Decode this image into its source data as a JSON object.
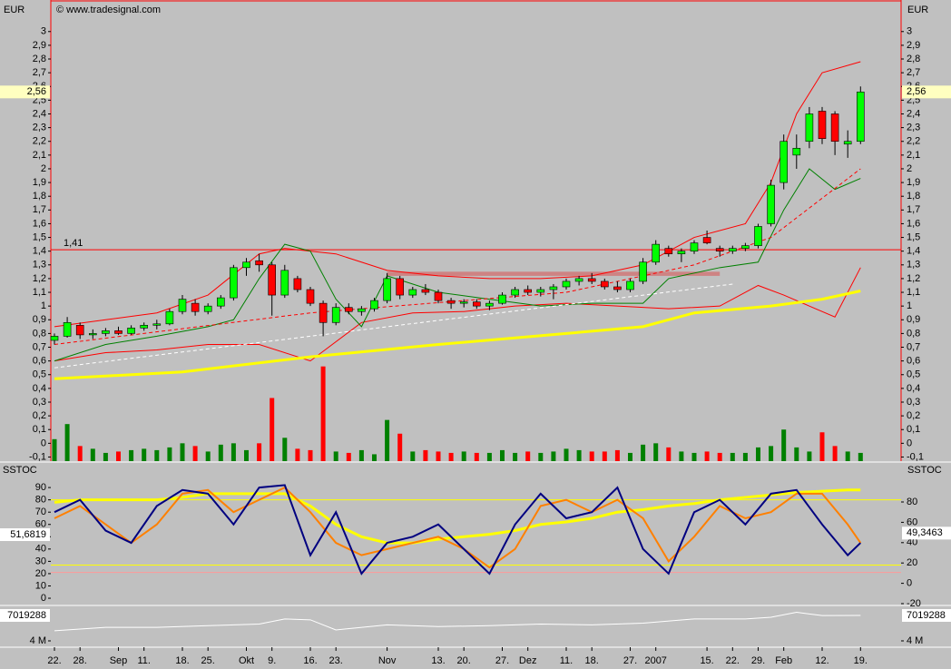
{
  "chart_data": [
    {
      "type": "candlestick",
      "axis_label": "EUR",
      "copyright": "© www.tradesignal.com",
      "categories": [
        "22.",
        null,
        "28.",
        null,
        null,
        "Sep",
        null,
        "11.",
        null,
        null,
        "18.",
        null,
        "25.",
        null,
        null,
        "Okt",
        null,
        "9.",
        null,
        null,
        "16.",
        null,
        "23.",
        null,
        null,
        null,
        "Nov",
        null,
        null,
        null,
        "13.",
        null,
        "20.",
        null,
        null,
        "27.",
        null,
        "Dez",
        null,
        null,
        "11.",
        null,
        "18.",
        null,
        null,
        "27.",
        null,
        "2007",
        null,
        null,
        null,
        "15.",
        null,
        "22.",
        null,
        "29.",
        null,
        "Feb",
        null,
        null,
        "12.",
        null,
        null,
        "19."
      ],
      "candles": [
        [
          0.75,
          0.8,
          0.72,
          0.78
        ],
        [
          0.78,
          0.92,
          0.77,
          0.88
        ],
        [
          0.86,
          0.88,
          0.76,
          0.79
        ],
        [
          0.79,
          0.83,
          0.76,
          0.8
        ],
        [
          0.8,
          0.84,
          0.78,
          0.82
        ],
        [
          0.82,
          0.85,
          0.79,
          0.8
        ],
        [
          0.8,
          0.86,
          0.79,
          0.84
        ],
        [
          0.84,
          0.88,
          0.82,
          0.86
        ],
        [
          0.86,
          0.9,
          0.83,
          0.87
        ],
        [
          0.87,
          0.98,
          0.86,
          0.96
        ],
        [
          0.96,
          1.08,
          0.94,
          1.05
        ],
        [
          1.02,
          1.05,
          0.93,
          0.96
        ],
        [
          0.96,
          1.02,
          0.94,
          1.0
        ],
        [
          1.0,
          1.08,
          0.98,
          1.06
        ],
        [
          1.06,
          1.3,
          1.04,
          1.28
        ],
        [
          1.28,
          1.35,
          1.22,
          1.32
        ],
        [
          1.33,
          1.38,
          1.25,
          1.3
        ],
        [
          1.3,
          1.32,
          0.93,
          1.08
        ],
        [
          1.08,
          1.3,
          1.06,
          1.26
        ],
        [
          1.2,
          1.22,
          1.1,
          1.12
        ],
        [
          1.12,
          1.14,
          1.0,
          1.02
        ],
        [
          1.02,
          1.04,
          0.78,
          0.88
        ],
        [
          0.88,
          1.02,
          0.86,
          0.99
        ],
        [
          0.99,
          1.02,
          0.94,
          0.96
        ],
        [
          0.96,
          1.0,
          0.93,
          0.98
        ],
        [
          0.98,
          1.06,
          0.96,
          1.04
        ],
        [
          1.04,
          1.24,
          1.02,
          1.2
        ],
        [
          1.2,
          1.22,
          1.05,
          1.08
        ],
        [
          1.08,
          1.14,
          1.06,
          1.12
        ],
        [
          1.12,
          1.16,
          1.08,
          1.1
        ],
        [
          1.1,
          1.12,
          1.02,
          1.04
        ],
        [
          1.04,
          1.06,
          0.98,
          1.02
        ],
        [
          1.02,
          1.05,
          0.99,
          1.03
        ],
        [
          1.03,
          1.05,
          0.98,
          1.0
        ],
        [
          1.0,
          1.04,
          0.97,
          1.02
        ],
        [
          1.02,
          1.1,
          1.01,
          1.08
        ],
        [
          1.08,
          1.14,
          1.06,
          1.12
        ],
        [
          1.12,
          1.15,
          1.08,
          1.1
        ],
        [
          1.1,
          1.14,
          1.07,
          1.12
        ],
        [
          1.12,
          1.16,
          1.05,
          1.14
        ],
        [
          1.14,
          1.2,
          1.12,
          1.18
        ],
        [
          1.18,
          1.22,
          1.15,
          1.2
        ],
        [
          1.2,
          1.24,
          1.16,
          1.18
        ],
        [
          1.18,
          1.2,
          1.12,
          1.14
        ],
        [
          1.14,
          1.18,
          1.1,
          1.12
        ],
        [
          1.12,
          1.2,
          1.1,
          1.18
        ],
        [
          1.18,
          1.35,
          1.16,
          1.32
        ],
        [
          1.32,
          1.48,
          1.3,
          1.45
        ],
        [
          1.42,
          1.44,
          1.36,
          1.38
        ],
        [
          1.38,
          1.42,
          1.32,
          1.4
        ],
        [
          1.4,
          1.48,
          1.38,
          1.46
        ],
        [
          1.5,
          1.55,
          1.45,
          1.46
        ],
        [
          1.42,
          1.44,
          1.36,
          1.4
        ],
        [
          1.4,
          1.44,
          1.38,
          1.42
        ],
        [
          1.42,
          1.46,
          1.4,
          1.44
        ],
        [
          1.44,
          1.6,
          1.42,
          1.58
        ],
        [
          1.6,
          1.92,
          1.58,
          1.88
        ],
        [
          1.9,
          2.25,
          1.85,
          2.2
        ],
        [
          2.1,
          2.25,
          2.0,
          2.15
        ],
        [
          2.2,
          2.45,
          2.15,
          2.4
        ],
        [
          2.42,
          2.45,
          2.18,
          2.22
        ],
        [
          2.4,
          2.42,
          2.1,
          2.2
        ],
        [
          2.18,
          2.28,
          2.08,
          2.2
        ],
        [
          2.2,
          2.6,
          2.18,
          2.56
        ]
      ],
      "volume": [
        0.03,
        0.14,
        -0.02,
        -0.04,
        -0.07,
        -0.06,
        -0.05,
        -0.04,
        -0.05,
        -0.03,
        0.0,
        -0.02,
        -0.06,
        -0.01,
        0.0,
        -0.05,
        0.0,
        0.33,
        0.04,
        -0.04,
        -0.05,
        0.56,
        -0.06,
        -0.07,
        -0.05,
        -0.08,
        0.17,
        0.07,
        -0.06,
        -0.05,
        -0.06,
        -0.07,
        -0.06,
        -0.07,
        -0.07,
        -0.05,
        -0.07,
        -0.06,
        -0.07,
        -0.06,
        -0.04,
        -0.05,
        -0.06,
        -0.06,
        -0.05,
        -0.07,
        -0.01,
        0.0,
        -0.03,
        -0.06,
        -0.07,
        -0.06,
        -0.07,
        -0.07,
        -0.07,
        -0.03,
        -0.02,
        0.1,
        -0.03,
        -0.06,
        0.08,
        -0.02,
        -0.06,
        -0.07
      ],
      "up_color": "#00ff00",
      "down_color": "#ff0000",
      "volume_up_color": "#008000",
      "ylim": [
        -0.13,
        3.23
      ],
      "yticks": [
        3,
        {
          "value": 2.9,
          "label": "2,9"
        },
        {
          "value": 2.8,
          "label": "2,8"
        },
        {
          "value": 2.7,
          "label": "2,7"
        },
        {
          "value": 2.6,
          "label": "2,6"
        },
        {
          "value": 2.5,
          "label": "2,5"
        },
        {
          "value": 2.4,
          "label": "2,4"
        },
        {
          "value": 2.3,
          "label": "2,3"
        },
        {
          "value": 2.2,
          "label": "2,2"
        },
        {
          "value": 2.1,
          "label": "2,1"
        },
        2,
        {
          "value": 1.9,
          "label": "1,9"
        },
        {
          "value": 1.8,
          "label": "1,8"
        },
        {
          "value": 1.7,
          "label": "1,7"
        },
        {
          "value": 1.6,
          "label": "1,6"
        },
        {
          "value": 1.5,
          "label": "1,5"
        },
        {
          "value": 1.4,
          "label": "1,4"
        },
        {
          "value": 1.3,
          "label": "1,3"
        },
        {
          "value": 1.2,
          "label": "1,2"
        },
        {
          "value": 1.1,
          "label": "1,1"
        },
        1,
        {
          "value": 0.9,
          "label": "0,9"
        },
        {
          "value": 0.8,
          "label": "0,8"
        },
        {
          "value": 0.7,
          "label": "0,7"
        },
        {
          "value": 0.6,
          "label": "0,6"
        },
        {
          "value": 0.5,
          "label": "0,5"
        },
        {
          "value": 0.4,
          "label": "0,4"
        },
        {
          "value": 0.3,
          "label": "0,3"
        },
        {
          "value": 0.2,
          "label": "0,2"
        },
        {
          "value": 0.1,
          "label": "0,1"
        },
        0,
        {
          "value": -0.1,
          "label": "-0,1"
        }
      ],
      "last": {
        "value": 2.56,
        "label": "2,56"
      },
      "level": {
        "value": 1.41,
        "label": "1,41",
        "color": "#ff0000"
      },
      "zone": [
        1.22,
        1.25
      ],
      "series": [
        {
          "color": "#ff0000",
          "width": 1,
          "x": [
            0,
            4,
            8,
            12,
            16,
            18,
            22,
            26,
            30,
            34,
            38,
            42,
            46,
            50,
            54,
            56,
            58,
            60,
            63
          ],
          "values": [
            0.85,
            0.9,
            0.95,
            1.08,
            1.38,
            1.42,
            1.38,
            1.26,
            1.22,
            1.2,
            1.2,
            1.22,
            1.3,
            1.5,
            1.6,
            1.9,
            2.4,
            2.7,
            2.78
          ]
        },
        {
          "color": "#ff0000",
          "width": 1,
          "x": [
            0,
            4,
            8,
            12,
            16,
            20,
            24,
            28,
            32,
            36,
            40,
            44,
            48,
            52,
            55,
            57,
            59,
            61,
            63
          ],
          "values": [
            0.6,
            0.66,
            0.68,
            0.72,
            0.72,
            0.6,
            0.88,
            0.95,
            0.96,
            1.0,
            1.02,
            1.0,
            0.98,
            1.0,
            1.15,
            1.08,
            1.0,
            0.92,
            1.28
          ]
        },
        {
          "color": "#008000",
          "width": 1,
          "x": [
            0,
            4,
            8,
            12,
            14,
            16,
            18,
            20,
            22,
            24,
            26,
            30,
            34,
            38,
            42,
            46,
            48,
            52,
            55,
            57,
            59,
            61,
            63
          ],
          "values": [
            0.6,
            0.72,
            0.78,
            0.85,
            0.9,
            1.2,
            1.45,
            1.4,
            1.05,
            0.85,
            1.22,
            1.1,
            1.05,
            1.0,
            1.02,
            1.02,
            1.2,
            1.28,
            1.32,
            1.7,
            2.0,
            1.85,
            1.93
          ]
        },
        {
          "color": "#ffff00",
          "width": 3,
          "x": [
            0,
            10,
            20,
            30,
            40,
            46,
            50,
            56,
            60,
            63
          ],
          "values": [
            0.47,
            0.52,
            0.63,
            0.72,
            0.8,
            0.85,
            0.95,
            1.0,
            1.05,
            1.11
          ]
        },
        {
          "color": "#ffffff",
          "width": 1,
          "dashed": true,
          "x": [
            0,
            53
          ],
          "values": [
            0.55,
            1.16
          ]
        },
        {
          "color": "#ff0000",
          "width": 1,
          "dashed": true,
          "x": [
            0,
            20,
            40,
            50,
            56,
            63
          ],
          "values": [
            0.72,
            0.95,
            1.1,
            1.3,
            1.5,
            2.0
          ]
        }
      ]
    },
    {
      "type": "line",
      "axis_label": "SSTOC",
      "ylim": [
        -4.4,
        110
      ],
      "yticks": [
        90,
        80,
        70,
        60,
        50,
        40,
        30,
        20,
        10,
        0
      ],
      "y2lim": [
        -20,
        118.4
      ],
      "y2ticks": [
        80,
        60,
        40,
        20,
        0,
        -20
      ],
      "levels": [
        {
          "value": 80,
          "color": "#ffff00"
        },
        {
          "value": 27,
          "color": "#ffff00"
        },
        {
          "value": 21,
          "color": "#ff9999"
        }
      ],
      "last": {
        "value": 51.6819,
        "label": "51,6819"
      },
      "last2": {
        "value": 49.3463,
        "label": "49,3463",
        "axis": "y2"
      },
      "series": [
        {
          "color": "#ffff00",
          "width": 3,
          "x": [
            0,
            2,
            4,
            6,
            8,
            10,
            12,
            14,
            16,
            18,
            20,
            22,
            24,
            26,
            28,
            30,
            32,
            34,
            36,
            38,
            40,
            42,
            44,
            46,
            48,
            50,
            52,
            54,
            56,
            58,
            60,
            62,
            63
          ],
          "values": [
            78,
            80,
            80,
            80,
            80,
            82,
            85,
            85,
            85,
            85,
            75,
            60,
            50,
            45,
            45,
            48,
            50,
            52,
            55,
            60,
            62,
            65,
            70,
            72,
            75,
            77,
            80,
            82,
            84,
            86,
            87,
            88,
            88
          ]
        },
        {
          "color": "#ff8000",
          "width": 2,
          "x": [
            0,
            2,
            4,
            6,
            8,
            10,
            12,
            14,
            16,
            18,
            20,
            22,
            24,
            26,
            28,
            30,
            32,
            34,
            36,
            38,
            40,
            42,
            44,
            46,
            48,
            50,
            52,
            54,
            56,
            58,
            60,
            62,
            63
          ],
          "values": [
            65,
            75,
            60,
            45,
            60,
            85,
            88,
            70,
            80,
            90,
            70,
            45,
            35,
            40,
            45,
            50,
            40,
            25,
            40,
            75,
            80,
            70,
            80,
            65,
            30,
            50,
            75,
            65,
            70,
            85,
            85,
            60,
            45
          ]
        },
        {
          "color": "#000080",
          "width": 2,
          "x": [
            0,
            2,
            4,
            6,
            8,
            10,
            12,
            14,
            16,
            18,
            20,
            22,
            24,
            26,
            28,
            30,
            32,
            34,
            36,
            38,
            40,
            42,
            44,
            46,
            48,
            50,
            52,
            54,
            56,
            58,
            60,
            62,
            63
          ],
          "values": [
            70,
            80,
            55,
            45,
            75,
            88,
            85,
            60,
            90,
            92,
            35,
            70,
            20,
            45,
            50,
            60,
            40,
            20,
            60,
            85,
            65,
            70,
            90,
            40,
            20,
            70,
            80,
            60,
            85,
            88,
            60,
            35,
            45
          ]
        }
      ]
    },
    {
      "type": "line",
      "ylim": [
        3353000,
        8097600
      ],
      "yticks": [
        {
          "value": 4000000,
          "label": "4 M"
        }
      ],
      "last": 7019288,
      "series": [
        {
          "color": "#ffffff",
          "width": 1,
          "x": [
            0,
            4,
            8,
            12,
            16,
            18,
            20,
            22,
            26,
            30,
            34,
            38,
            42,
            46,
            50,
            54,
            56,
            58,
            60,
            63
          ],
          "values": [
            5200000,
            5600000,
            5600000,
            5800000,
            6000000,
            6600000,
            6500000,
            5300000,
            5900000,
            5700000,
            5800000,
            6000000,
            5900000,
            6100000,
            6600000,
            6600000,
            6800000,
            7400000,
            7000000,
            7019288
          ]
        }
      ]
    }
  ]
}
